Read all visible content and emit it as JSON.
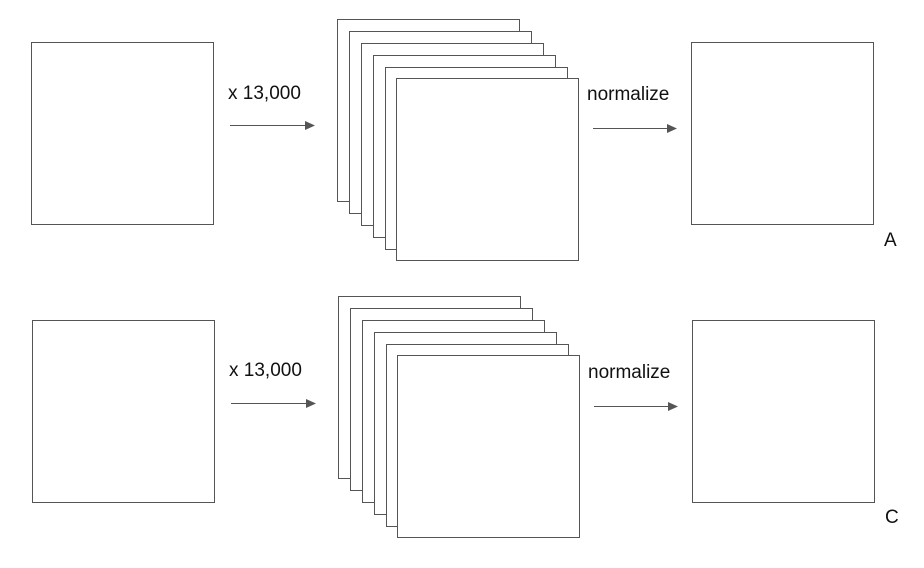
{
  "rows": [
    {
      "multiply_label": "x 13,000",
      "operation_label": "normalize",
      "panel_label": "A",
      "stack_count": 6
    },
    {
      "multiply_label": "x 13,000",
      "operation_label": "normalize",
      "panel_label": "C",
      "stack_count": 6
    }
  ],
  "colors": {
    "stroke": "#555555",
    "fill": "#ffffff",
    "text": "#111111"
  }
}
